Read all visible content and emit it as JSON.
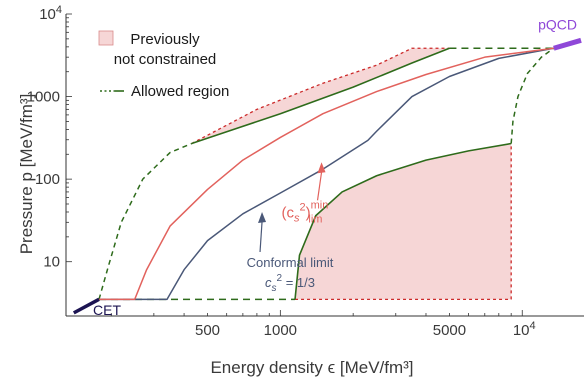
{
  "chart_data": {
    "type": "line",
    "xlabel": "Energy density ϵ [MeV/fm³]",
    "ylabel": "Pressure p [MeV/fm³]",
    "x_scale": "log",
    "y_scale": "log",
    "xlim": [
      130,
      18000
    ],
    "ylim": [
      2.2,
      10000
    ],
    "x_ticks": [
      {
        "value": 500,
        "label": "500"
      },
      {
        "value": 1000,
        "label": "1000"
      },
      {
        "value": 5000,
        "label": "5000"
      }
    ],
    "x_tick_power": {
      "value": 10000,
      "base": "10",
      "exp": "4"
    },
    "y_ticks": [
      {
        "value": 10,
        "label": "10"
      },
      {
        "value": 100,
        "label": "100"
      },
      {
        "value": 1000,
        "label": "1000"
      }
    ],
    "y_tick_power": {
      "value": 10000,
      "base": "10",
      "exp": "4"
    },
    "legend": {
      "placement": "top-left",
      "entries": [
        {
          "label_lines": [
            "Previously",
            "not constrained"
          ],
          "marker": "shaded-box"
        },
        {
          "label_lines": [
            "Allowed region"
          ],
          "marker": "dashed-solid-line"
        }
      ]
    },
    "colors": {
      "allowed": "#2e6b1b",
      "unconstrained": "#cc2a2a",
      "shade": "#f6d6d6",
      "conformal": "#4a5878",
      "cs2lim": "#e2625d",
      "pqcd": "#8f48d8",
      "cet": "#1c1452",
      "axis": "#333333"
    },
    "series": [
      {
        "role": "cet",
        "label": "CET",
        "points": [
          [
            140,
            2.4
          ],
          [
            178,
            3.5
          ]
        ]
      },
      {
        "role": "pqcd",
        "label": "pQCD",
        "points": [
          [
            13500,
            3850
          ],
          [
            17500,
            4800
          ]
        ]
      },
      {
        "role": "conformal",
        "points": [
          [
            178,
            3.5
          ],
          [
            340,
            3.5
          ],
          [
            400,
            8
          ],
          [
            500,
            18
          ],
          [
            700,
            38
          ],
          [
            1000,
            68
          ],
          [
            1500,
            132
          ],
          [
            2300,
            295
          ],
          [
            2500,
            380
          ],
          [
            3500,
            1000
          ],
          [
            5000,
            1750
          ],
          [
            8000,
            2900
          ],
          [
            13500,
            3850
          ]
        ]
      },
      {
        "role": "cs2lim",
        "points": [
          [
            178,
            3.5
          ],
          [
            250,
            3.5
          ],
          [
            280,
            8
          ],
          [
            350,
            27
          ],
          [
            500,
            75
          ],
          [
            700,
            170
          ],
          [
            1000,
            320
          ],
          [
            1500,
            620
          ],
          [
            2500,
            1150
          ],
          [
            4000,
            1850
          ],
          [
            7000,
            3000
          ],
          [
            13500,
            3850
          ]
        ]
      },
      {
        "role": "upper-envelope",
        "points": [
          [
            178,
            3.5
          ],
          [
            195,
            9
          ],
          [
            220,
            30
          ],
          [
            270,
            100
          ],
          [
            350,
            210
          ],
          [
            430,
            270
          ],
          [
            600,
            450
          ],
          [
            1000,
            800
          ],
          [
            2000,
            1600
          ],
          [
            3000,
            2400
          ],
          [
            5000,
            3850
          ]
        ]
      },
      {
        "role": "lower-envelope",
        "points": [
          [
            178,
            3.5
          ],
          [
            1150,
            3.5
          ],
          [
            1200,
            12
          ],
          [
            1400,
            36
          ],
          [
            1800,
            70
          ],
          [
            2500,
            110
          ],
          [
            4000,
            170
          ],
          [
            6000,
            220
          ],
          [
            9000,
            270
          ]
        ]
      },
      {
        "role": "allowed-left-dashed",
        "points": [
          [
            178,
            3.5
          ],
          [
            195,
            9
          ],
          [
            220,
            30
          ],
          [
            270,
            100
          ],
          [
            350,
            210
          ],
          [
            430,
            270
          ]
        ]
      },
      {
        "role": "allowed-upper-solid",
        "points": [
          [
            430,
            270
          ],
          [
            1000,
            620
          ],
          [
            2000,
            1300
          ],
          [
            3500,
            2550
          ],
          [
            5000,
            3850
          ]
        ]
      },
      {
        "role": "allowed-top-dashed",
        "points": [
          [
            5000,
            3850
          ],
          [
            13500,
            3850
          ]
        ]
      },
      {
        "role": "allowed-right-dashed",
        "points": [
          [
            9000,
            270
          ],
          [
            9150,
            500
          ],
          [
            9600,
            1000
          ],
          [
            10500,
            1900
          ],
          [
            12000,
            3000
          ],
          [
            13500,
            3850
          ]
        ]
      },
      {
        "role": "allowed-bottom-dashed",
        "points": [
          [
            178,
            3.5
          ],
          [
            1150,
            3.5
          ]
        ]
      },
      {
        "role": "allowed-lower-solid",
        "points": [
          [
            1150,
            3.5
          ],
          [
            1200,
            12
          ],
          [
            1400,
            36
          ],
          [
            1800,
            70
          ],
          [
            2500,
            110
          ],
          [
            4000,
            170
          ],
          [
            6000,
            220
          ],
          [
            9000,
            270
          ]
        ]
      },
      {
        "role": "unconstrained-bottom",
        "points": [
          [
            1150,
            3.5
          ],
          [
            9000,
            3.5
          ]
        ]
      },
      {
        "role": "unconstrained-right",
        "points": [
          [
            9000,
            3.5
          ],
          [
            9000,
            270
          ]
        ]
      },
      {
        "role": "unconstrained-upper",
        "points": [
          [
            430,
            270
          ],
          [
            800,
            700
          ],
          [
            1500,
            1450
          ],
          [
            2500,
            2400
          ],
          [
            3500,
            3850
          ],
          [
            5000,
            3850
          ]
        ]
      }
    ],
    "shaded_regions": [
      {
        "role": "upper-sliver",
        "points": [
          [
            430,
            270
          ],
          [
            800,
            700
          ],
          [
            1500,
            1450
          ],
          [
            2500,
            2400
          ],
          [
            3500,
            3850
          ],
          [
            5000,
            3850
          ],
          [
            3500,
            2550
          ],
          [
            2000,
            1300
          ],
          [
            1000,
            620
          ]
        ]
      },
      {
        "role": "lower-region",
        "points": [
          [
            1150,
            3.5
          ],
          [
            9000,
            3.5
          ],
          [
            9000,
            270
          ],
          [
            6000,
            220
          ],
          [
            4000,
            170
          ],
          [
            2500,
            110
          ],
          [
            1800,
            70
          ],
          [
            1400,
            36
          ],
          [
            1200,
            12
          ]
        ]
      }
    ],
    "annotations": [
      {
        "role": "cs2lim",
        "base": "(c",
        "sub": "s",
        "sup": "2",
        "close": ")",
        "super": "min",
        "subscript": "lim",
        "arrow_tip": [
          1480,
          160
        ]
      },
      {
        "role": "conformal",
        "line1": "Conformal limit",
        "line2_base": "c",
        "line2_sub": "s",
        "line2_sup": "2",
        "line2_rest": " = 1/3",
        "arrow_tip": [
          840,
          40
        ]
      }
    ],
    "labels": {
      "pqcd": "pQCD",
      "cet": "CET"
    }
  }
}
